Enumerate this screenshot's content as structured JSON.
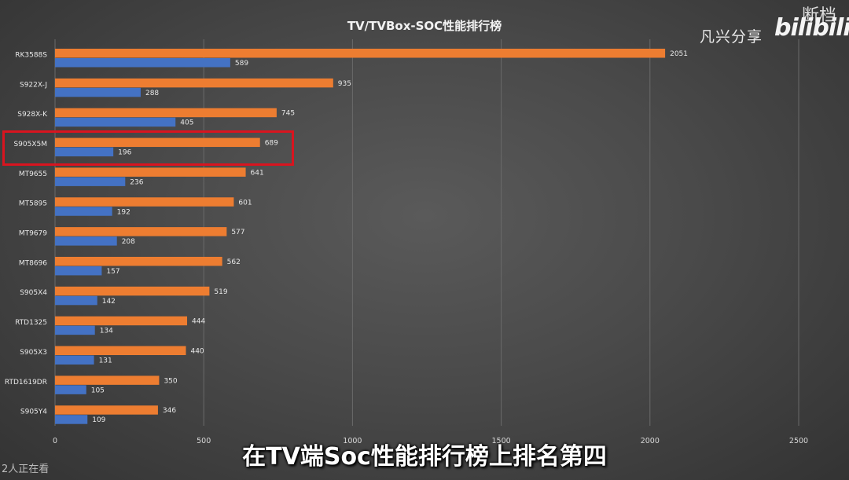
{
  "overlay": {
    "channel_text": "凡兴分享",
    "logo_text": "bilibili",
    "corner_tag": "断档",
    "subtitle": "在TV端Soc性能排行榜上排名第四",
    "viewers": "2人正在看",
    "highlight_color": "#d9141f"
  },
  "chart_data": {
    "type": "bar",
    "orientation": "horizontal",
    "title": "TV/TVBox-SOC性能排行榜",
    "categories": [
      "RK3588S",
      "S922X-J",
      "S928X-K",
      "S905X5M",
      "MT9655",
      "MT5895",
      "MT9679",
      "MT8696",
      "S905X4",
      "RTD1325",
      "S905X3",
      "RTD1619DR",
      "S905Y4"
    ],
    "series": [
      {
        "color": "#ed7d31",
        "values": [
          2051,
          935,
          745,
          689,
          641,
          601,
          577,
          562,
          519,
          444,
          440,
          350,
          346
        ]
      },
      {
        "color": "#4472c4",
        "values": [
          589,
          288,
          405,
          196,
          236,
          192,
          208,
          157,
          142,
          134,
          131,
          105,
          109
        ]
      }
    ],
    "xlim": [
      0,
      2500
    ],
    "xticks": [
      0,
      500,
      1000,
      1500,
      2000,
      2500
    ],
    "grid": true,
    "highlighted_category": "S905X5M"
  }
}
